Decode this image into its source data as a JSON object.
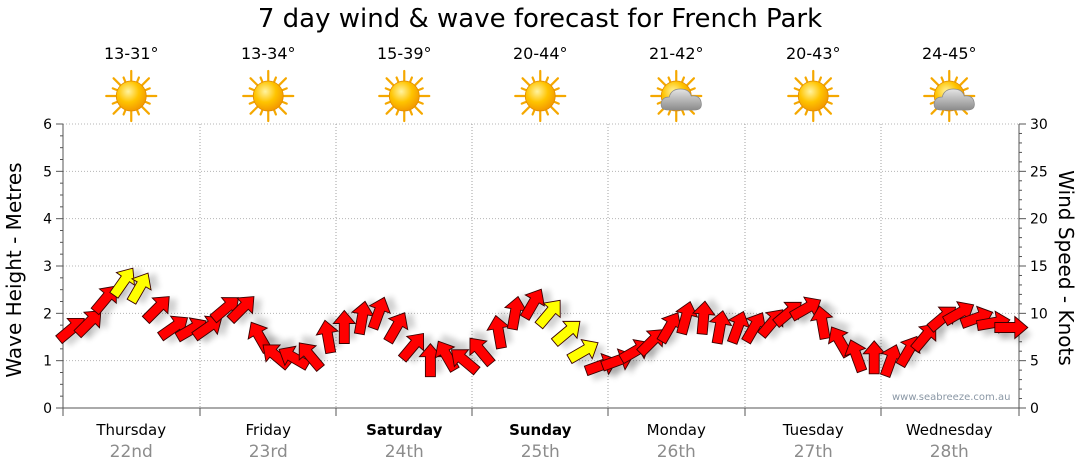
{
  "chart_data": {
    "type": "wind_wave_forecast",
    "title": "7 day wind & wave forecast for French Park",
    "ylabel_left": "Wave Height - Metres",
    "ylabel_right": "Wind Speed - Knots",
    "ylim_left": [
      0,
      6
    ],
    "ylim_right": [
      0,
      30
    ],
    "yticks_left": [
      "0",
      "1",
      "2",
      "3",
      "4",
      "5",
      "6"
    ],
    "yticks_right": [
      "0",
      "5",
      "10",
      "15",
      "20",
      "25",
      "30"
    ],
    "grid": true,
    "days": [
      {
        "name": "Thursday",
        "date": "22nd",
        "bold": false,
        "temp": "13-31°",
        "icon": "sun-icon"
      },
      {
        "name": "Friday",
        "date": "23rd",
        "bold": false,
        "temp": "13-34°",
        "icon": "sun-icon"
      },
      {
        "name": "Saturday",
        "date": "24th",
        "bold": true,
        "temp": "15-39°",
        "icon": "sun-icon"
      },
      {
        "name": "Sunday",
        "date": "25th",
        "bold": true,
        "temp": "20-44°",
        "icon": "sun-icon"
      },
      {
        "name": "Monday",
        "date": "26th",
        "bold": false,
        "temp": "21-42°",
        "icon": "partly-cloudy-icon"
      },
      {
        "name": "Tuesday",
        "date": "27th",
        "bold": false,
        "temp": "20-43°",
        "icon": "sun-icon"
      },
      {
        "name": "Wednesday",
        "date": "28th",
        "bold": false,
        "temp": "24-45°",
        "icon": "partly-cloudy-icon"
      }
    ],
    "wind_series": {
      "name": "Wind",
      "unit": "knots",
      "x_days": [
        0.0,
        0.13,
        0.25,
        0.38,
        0.5,
        0.63,
        0.75,
        0.88,
        1.0,
        1.13,
        1.25,
        1.38,
        1.5,
        1.63,
        1.75,
        1.88,
        2.0,
        2.13,
        2.25,
        2.38,
        2.5,
        2.63,
        2.75,
        2.88,
        3.0,
        3.13,
        3.25,
        3.38,
        3.5,
        3.63,
        3.75,
        3.88,
        4.0,
        4.13,
        4.25,
        4.38,
        4.5,
        4.63,
        4.75,
        4.88,
        5.0,
        5.13,
        5.25,
        5.38,
        5.5,
        5.63,
        5.75,
        5.88,
        6.0,
        6.13,
        6.25,
        6.38,
        6.5,
        6.63,
        6.75,
        6.88
      ],
      "knots": [
        8.3,
        9.0,
        11.5,
        13.3,
        12.7,
        10.5,
        8.5,
        8.3,
        8.5,
        10.5,
        10.5,
        7.5,
        5.5,
        5.3,
        5.5,
        7.5,
        8.5,
        9.5,
        10.0,
        8.5,
        6.5,
        5.0,
        5.5,
        5.0,
        6.0,
        8.0,
        10.0,
        11.0,
        10.0,
        8.0,
        6.0,
        4.5,
        5.0,
        6.0,
        7.0,
        8.5,
        9.5,
        9.5,
        8.5,
        8.5,
        8.5,
        9.0,
        10.0,
        10.5,
        9.0,
        7.0,
        5.5,
        5.3,
        5.0,
        6.0,
        7.5,
        9.5,
        10.0,
        9.5,
        9.0,
        8.5
      ],
      "degrees_toward": [
        40,
        45,
        50,
        55,
        60,
        45,
        35,
        30,
        35,
        40,
        45,
        120,
        140,
        150,
        130,
        100,
        90,
        80,
        70,
        60,
        50,
        90,
        120,
        140,
        130,
        100,
        80,
        60,
        50,
        40,
        30,
        20,
        20,
        30,
        45,
        60,
        75,
        85,
        80,
        70,
        60,
        50,
        40,
        30,
        100,
        120,
        110,
        90,
        70,
        60,
        50,
        40,
        30,
        20,
        10,
        0
      ],
      "highlighted": [
        false,
        false,
        false,
        true,
        true,
        false,
        false,
        false,
        false,
        false,
        false,
        false,
        false,
        false,
        false,
        false,
        false,
        false,
        false,
        false,
        false,
        false,
        false,
        false,
        false,
        false,
        false,
        false,
        true,
        true,
        true,
        false,
        false,
        false,
        false,
        false,
        false,
        false,
        false,
        false,
        false,
        false,
        false,
        false,
        false,
        false,
        false,
        false,
        false,
        false,
        false,
        false,
        false,
        false,
        false,
        false
      ],
      "colors": {
        "normal": "#ff0000",
        "highlight": "#ffff00"
      }
    }
  },
  "watermark": "www.seabreeze.com.au"
}
